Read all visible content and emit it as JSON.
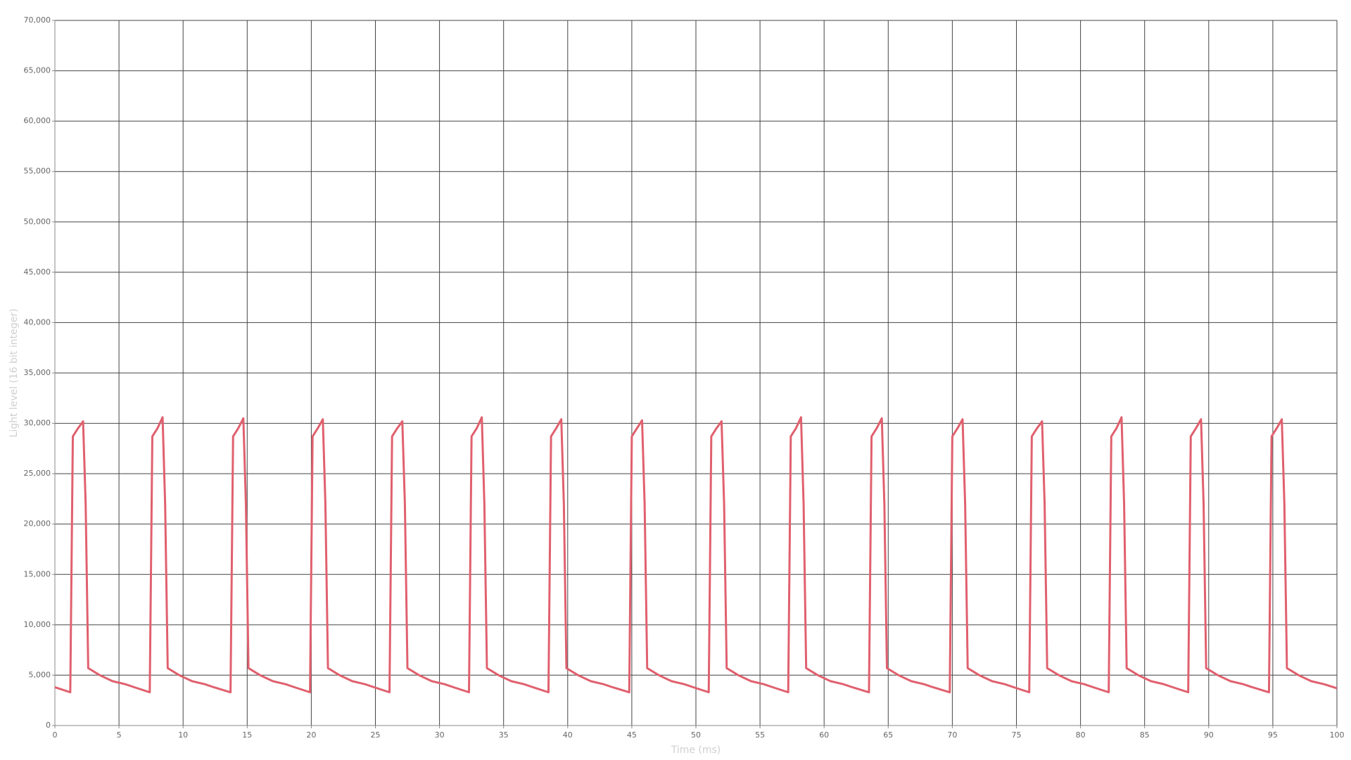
{
  "chart_data": {
    "type": "line",
    "x_label": "Time (ms)",
    "y_label": "Light level (16 bit integer)",
    "xlim": [
      0,
      100
    ],
    "xticks": [
      0,
      5,
      10,
      15,
      20,
      25,
      30,
      35,
      40,
      45,
      50,
      55,
      60,
      65,
      70,
      75,
      80,
      85,
      90,
      95,
      100
    ],
    "ylim": [
      0,
      70000
    ],
    "yticks": [
      0,
      {
        "value": 5000,
        "label": "5,000"
      },
      {
        "value": 10000,
        "label": "10,000"
      },
      {
        "value": 15000,
        "label": "15,000"
      },
      {
        "value": 20000,
        "label": "20,000"
      },
      {
        "value": 25000,
        "label": "25,000"
      },
      {
        "value": 30000,
        "label": "30,000"
      },
      {
        "value": 35000,
        "label": "35,000"
      },
      {
        "value": 40000,
        "label": "40,000"
      },
      {
        "value": 45000,
        "label": "45,000"
      },
      {
        "value": 50000,
        "label": "50,000"
      },
      {
        "value": 55000,
        "label": "55,000"
      },
      {
        "value": 60000,
        "label": "60,000"
      },
      {
        "value": 65000,
        "label": "65,000"
      },
      {
        "value": 70000,
        "label": "70,000"
      }
    ],
    "grid": true,
    "x": [
      0,
      1.2,
      1.4,
      1.8,
      2.2,
      2.4,
      2.6,
      3.5,
      4.5,
      5.5,
      6.2,
      7.4,
      7.6,
      8.0,
      8.4,
      8.6,
      8.8,
      9.7,
      10.7,
      11.7,
      12.4,
      13.7,
      13.9,
      14.3,
      14.7,
      14.9,
      15.1,
      16.0,
      17.0,
      18.0,
      18.7,
      19.9,
      20.1,
      20.5,
      20.9,
      21.1,
      21.3,
      22.2,
      23.2,
      24.2,
      24.9,
      26.1,
      26.3,
      26.7,
      27.1,
      27.3,
      27.5,
      28.4,
      29.4,
      30.4,
      31.1,
      32.3,
      32.5,
      32.9,
      33.3,
      33.5,
      33.7,
      34.6,
      35.6,
      36.6,
      37.3,
      38.5,
      38.7,
      39.1,
      39.5,
      39.7,
      39.9,
      40.8,
      41.8,
      42.8,
      43.5,
      44.8,
      45.0,
      45.4,
      45.8,
      46.0,
      46.2,
      47.1,
      48.1,
      49.1,
      49.8,
      51.0,
      51.2,
      51.6,
      52.0,
      52.2,
      52.4,
      53.3,
      54.3,
      55.3,
      56.0,
      57.2,
      57.4,
      57.8,
      58.2,
      58.4,
      58.6,
      59.5,
      60.5,
      61.5,
      62.2,
      63.5,
      63.7,
      64.1,
      64.5,
      64.7,
      64.9,
      65.8,
      66.8,
      67.8,
      68.5,
      69.8,
      70.0,
      70.4,
      70.8,
      71.0,
      71.2,
      72.1,
      73.1,
      74.1,
      74.8,
      76.0,
      76.2,
      76.6,
      77.0,
      77.2,
      77.4,
      78.3,
      79.3,
      80.3,
      81.0,
      82.2,
      82.4,
      82.8,
      83.2,
      83.4,
      83.6,
      84.5,
      85.5,
      86.5,
      87.2,
      88.4,
      88.6,
      89.0,
      89.4,
      89.6,
      89.8,
      90.7,
      91.7,
      92.7,
      93.4,
      94.7,
      94.9,
      95.3,
      95.7,
      95.9,
      96.1,
      97.0,
      98.0,
      99.0,
      100
    ],
    "series": [
      {
        "color": "#e0606e",
        "values": [
          3800,
          3300,
          28700,
          29500,
          30200,
          22000,
          5700,
          5000,
          4400,
          4100,
          3800,
          3300,
          28700,
          29500,
          30600,
          22000,
          5700,
          5000,
          4400,
          4100,
          3800,
          3300,
          28700,
          29500,
          30500,
          22000,
          5700,
          5000,
          4400,
          4100,
          3800,
          3300,
          28700,
          29500,
          30400,
          22000,
          5700,
          5000,
          4400,
          4100,
          3800,
          3300,
          28700,
          29500,
          30200,
          22000,
          5700,
          5000,
          4400,
          4100,
          3800,
          3300,
          28700,
          29500,
          30600,
          22000,
          5700,
          5000,
          4400,
          4100,
          3800,
          3300,
          28700,
          29500,
          30400,
          22000,
          5700,
          5000,
          4400,
          4100,
          3800,
          3300,
          28700,
          29500,
          30300,
          22000,
          5700,
          5000,
          4400,
          4100,
          3800,
          3300,
          28700,
          29500,
          30200,
          22000,
          5700,
          5000,
          4400,
          4100,
          3800,
          3300,
          28700,
          29500,
          30600,
          22000,
          5700,
          5000,
          4400,
          4100,
          3800,
          3300,
          28700,
          29500,
          30500,
          22000,
          5700,
          5000,
          4400,
          4100,
          3800,
          3300,
          28700,
          29500,
          30400,
          22000,
          5700,
          5000,
          4400,
          4100,
          3800,
          3300,
          28700,
          29500,
          30200,
          22000,
          5700,
          5000,
          4400,
          4100,
          3800,
          3300,
          28700,
          29500,
          30600,
          22000,
          5700,
          5000,
          4400,
          4100,
          3800,
          3300,
          28700,
          29500,
          30400,
          22000,
          5700,
          5000,
          4400,
          4100,
          3800,
          3300,
          28700,
          29500,
          30400,
          22000,
          5700,
          5000,
          4400,
          4100,
          3700
        ]
      }
    ]
  }
}
